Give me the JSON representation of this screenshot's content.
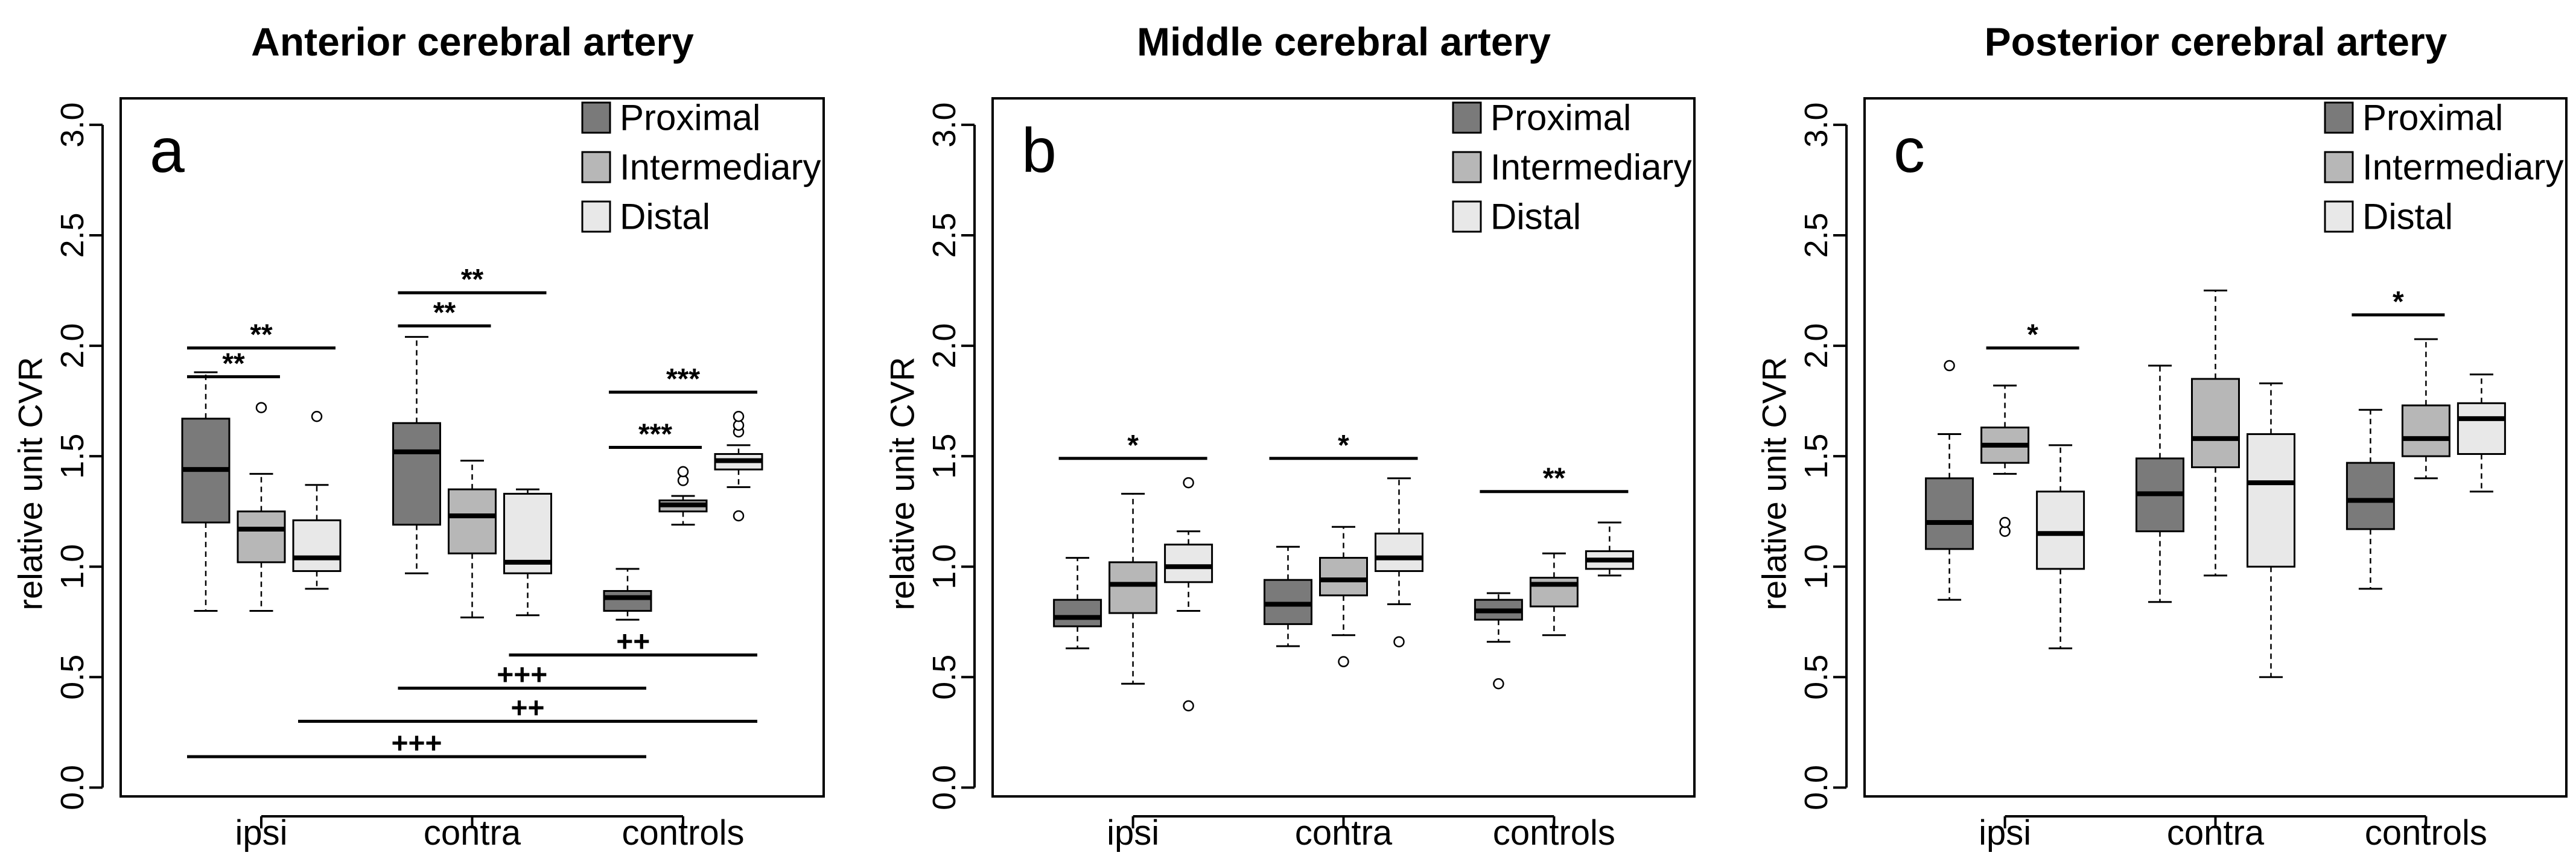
{
  "chart_data": [
    {
      "type": "boxplot",
      "letter": "a",
      "title": "Anterior cerebral artery",
      "xlabel": "",
      "ylabel": "relative unit CVR",
      "ylim": [
        -0.04,
        3.12
      ],
      "yticks": [
        0.0,
        0.5,
        1.0,
        1.5,
        2.0,
        2.5,
        3.0
      ],
      "ytick_labels": [
        "0.0",
        "0.5",
        "1.0",
        "1.5",
        "2.0",
        "2.5",
        "3.0"
      ],
      "categories": [
        "ipsi",
        "contra",
        "controls"
      ],
      "legend": {
        "position": "top-right",
        "entries": [
          {
            "label": "Proximal",
            "color": "#7a7a7a"
          },
          {
            "label": "Intermediary",
            "color": "#b7b7b7"
          },
          {
            "label": "Distal",
            "color": "#e8e8e8"
          }
        ]
      },
      "series": [
        {
          "name": "Proximal",
          "color": "#7a7a7a",
          "boxes": [
            {
              "category": "ipsi",
              "whisker_low": 0.8,
              "q1": 1.2,
              "median": 1.44,
              "q3": 1.67,
              "whisker_high": 1.88,
              "outliers": []
            },
            {
              "category": "contra",
              "whisker_low": 0.97,
              "q1": 1.19,
              "median": 1.52,
              "q3": 1.65,
              "whisker_high": 2.04,
              "outliers": []
            },
            {
              "category": "controls",
              "whisker_low": 0.76,
              "q1": 0.8,
              "median": 0.86,
              "q3": 0.89,
              "whisker_high": 0.99,
              "outliers": []
            }
          ]
        },
        {
          "name": "Intermediary",
          "color": "#b7b7b7",
          "boxes": [
            {
              "category": "ipsi",
              "whisker_low": 0.8,
              "q1": 1.02,
              "median": 1.17,
              "q3": 1.25,
              "whisker_high": 1.42,
              "outliers": [
                1.72
              ]
            },
            {
              "category": "contra",
              "whisker_low": 0.77,
              "q1": 1.06,
              "median": 1.23,
              "q3": 1.35,
              "whisker_high": 1.48,
              "outliers": []
            },
            {
              "category": "controls",
              "whisker_low": 1.19,
              "q1": 1.25,
              "median": 1.28,
              "q3": 1.3,
              "whisker_high": 1.32,
              "outliers": [
                1.39,
                1.43
              ]
            }
          ]
        },
        {
          "name": "Distal",
          "color": "#e8e8e8",
          "boxes": [
            {
              "category": "ipsi",
              "whisker_low": 0.9,
              "q1": 0.98,
              "median": 1.04,
              "q3": 1.21,
              "whisker_high": 1.37,
              "outliers": [
                1.68
              ]
            },
            {
              "category": "contra",
              "whisker_low": 0.78,
              "q1": 0.97,
              "median": 1.02,
              "q3": 1.33,
              "whisker_high": 1.35,
              "outliers": []
            },
            {
              "category": "controls",
              "whisker_low": 1.36,
              "q1": 1.44,
              "median": 1.48,
              "q3": 1.51,
              "whisker_high": 1.55,
              "outliers": [
                1.23,
                1.61,
                1.64,
                1.68
              ]
            }
          ]
        }
      ],
      "annotations": [
        {
          "label": "**",
          "y": 1.99,
          "from": {
            "category": "ipsi",
            "series": "Proximal"
          },
          "to": {
            "category": "ipsi",
            "series": "Distal"
          }
        },
        {
          "label": "**",
          "y": 1.86,
          "from": {
            "category": "ipsi",
            "series": "Proximal"
          },
          "to": {
            "category": "ipsi",
            "series": "Intermediary"
          }
        },
        {
          "label": "**",
          "y": 2.24,
          "from": {
            "category": "contra",
            "series": "Proximal"
          },
          "to": {
            "category": "contra",
            "series": "Distal"
          }
        },
        {
          "label": "**",
          "y": 2.09,
          "from": {
            "category": "contra",
            "series": "Proximal"
          },
          "to": {
            "category": "contra",
            "series": "Intermediary"
          }
        },
        {
          "label": "***",
          "y": 1.79,
          "from": {
            "category": "controls",
            "series": "Proximal"
          },
          "to": {
            "category": "controls",
            "series": "Distal"
          }
        },
        {
          "label": "***",
          "y": 1.54,
          "from": {
            "category": "controls",
            "series": "Proximal"
          },
          "to": {
            "category": "controls",
            "series": "Intermediary"
          }
        },
        {
          "label": "++",
          "y": 0.6,
          "from": {
            "category": "contra",
            "series": "Distal"
          },
          "to": {
            "category": "controls",
            "series": "Distal"
          }
        },
        {
          "label": "+++",
          "y": 0.45,
          "from": {
            "category": "contra",
            "series": "Proximal"
          },
          "to": {
            "category": "controls",
            "series": "Proximal"
          }
        },
        {
          "label": "++",
          "y": 0.3,
          "from": {
            "category": "ipsi",
            "series": "Distal"
          },
          "to": {
            "category": "controls",
            "series": "Distal"
          }
        },
        {
          "label": "+++",
          "y": 0.14,
          "from": {
            "category": "ipsi",
            "series": "Proximal"
          },
          "to": {
            "category": "controls",
            "series": "Proximal"
          }
        }
      ]
    },
    {
      "type": "boxplot",
      "letter": "b",
      "title": "Middle cerebral artery",
      "xlabel": "",
      "ylabel": "relative unit CVR",
      "ylim": [
        -0.04,
        3.12
      ],
      "yticks": [
        0.0,
        0.5,
        1.0,
        1.5,
        2.0,
        2.5,
        3.0
      ],
      "ytick_labels": [
        "0.0",
        "0.5",
        "1.0",
        "1.5",
        "2.0",
        "2.5",
        "3.0"
      ],
      "categories": [
        "ipsi",
        "contra",
        "controls"
      ],
      "legend": {
        "position": "top-right",
        "entries": [
          {
            "label": "Proximal",
            "color": "#7a7a7a"
          },
          {
            "label": "Intermediary",
            "color": "#b7b7b7"
          },
          {
            "label": "Distal",
            "color": "#e8e8e8"
          }
        ]
      },
      "series": [
        {
          "name": "Proximal",
          "color": "#7a7a7a",
          "boxes": [
            {
              "category": "ipsi",
              "whisker_low": 0.63,
              "q1": 0.73,
              "median": 0.77,
              "q3": 0.85,
              "whisker_high": 1.04,
              "outliers": []
            },
            {
              "category": "contra",
              "whisker_low": 0.64,
              "q1": 0.74,
              "median": 0.83,
              "q3": 0.94,
              "whisker_high": 1.09,
              "outliers": []
            },
            {
              "category": "controls",
              "whisker_low": 0.66,
              "q1": 0.76,
              "median": 0.8,
              "q3": 0.85,
              "whisker_high": 0.88,
              "outliers": [
                0.47
              ]
            }
          ]
        },
        {
          "name": "Intermediary",
          "color": "#b7b7b7",
          "boxes": [
            {
              "category": "ipsi",
              "whisker_low": 0.47,
              "q1": 0.79,
              "median": 0.92,
              "q3": 1.02,
              "whisker_high": 1.33,
              "outliers": []
            },
            {
              "category": "contra",
              "whisker_low": 0.69,
              "q1": 0.87,
              "median": 0.94,
              "q3": 1.04,
              "whisker_high": 1.18,
              "outliers": [
                0.57
              ]
            },
            {
              "category": "controls",
              "whisker_low": 0.69,
              "q1": 0.82,
              "median": 0.92,
              "q3": 0.95,
              "whisker_high": 1.06,
              "outliers": []
            }
          ]
        },
        {
          "name": "Distal",
          "color": "#e8e8e8",
          "boxes": [
            {
              "category": "ipsi",
              "whisker_low": 0.8,
              "q1": 0.93,
              "median": 1.0,
              "q3": 1.1,
              "whisker_high": 1.16,
              "outliers": [
                0.37,
                1.38
              ]
            },
            {
              "category": "contra",
              "whisker_low": 0.83,
              "q1": 0.98,
              "median": 1.04,
              "q3": 1.15,
              "whisker_high": 1.4,
              "outliers": [
                0.66
              ]
            },
            {
              "category": "controls",
              "whisker_low": 0.96,
              "q1": 0.99,
              "median": 1.03,
              "q3": 1.07,
              "whisker_high": 1.2,
              "outliers": []
            }
          ]
        }
      ],
      "annotations": [
        {
          "label": "*",
          "y": 1.49,
          "from": {
            "category": "ipsi",
            "series": "Proximal"
          },
          "to": {
            "category": "ipsi",
            "series": "Distal"
          }
        },
        {
          "label": "*",
          "y": 1.49,
          "from": {
            "category": "contra",
            "series": "Proximal"
          },
          "to": {
            "category": "contra",
            "series": "Distal"
          }
        },
        {
          "label": "**",
          "y": 1.34,
          "from": {
            "category": "controls",
            "series": "Proximal"
          },
          "to": {
            "category": "controls",
            "series": "Distal"
          }
        }
      ]
    },
    {
      "type": "boxplot",
      "letter": "c",
      "title": "Posterior cerebral artery",
      "xlabel": "",
      "ylabel": "relative unit CVR",
      "ylim": [
        -0.04,
        3.12
      ],
      "yticks": [
        0.0,
        0.5,
        1.0,
        1.5,
        2.0,
        2.5,
        3.0
      ],
      "ytick_labels": [
        "0.0",
        "0.5",
        "1.0",
        "1.5",
        "2.0",
        "2.5",
        "3.0"
      ],
      "categories": [
        "ipsi",
        "contra",
        "controls"
      ],
      "legend": {
        "position": "top-right",
        "entries": [
          {
            "label": "Proximal",
            "color": "#7a7a7a"
          },
          {
            "label": "Intermediary",
            "color": "#b7b7b7"
          },
          {
            "label": "Distal",
            "color": "#e8e8e8"
          }
        ]
      },
      "series": [
        {
          "name": "Proximal",
          "color": "#7a7a7a",
          "boxes": [
            {
              "category": "ipsi",
              "whisker_low": 0.85,
              "q1": 1.08,
              "median": 1.2,
              "q3": 1.4,
              "whisker_high": 1.6,
              "outliers": [
                1.91
              ]
            },
            {
              "category": "contra",
              "whisker_low": 0.84,
              "q1": 1.16,
              "median": 1.33,
              "q3": 1.49,
              "whisker_high": 1.91,
              "outliers": []
            },
            {
              "category": "controls",
              "whisker_low": 0.9,
              "q1": 1.17,
              "median": 1.3,
              "q3": 1.47,
              "whisker_high": 1.71,
              "outliers": []
            }
          ]
        },
        {
          "name": "Intermediary",
          "color": "#b7b7b7",
          "boxes": [
            {
              "category": "ipsi",
              "whisker_low": 1.42,
              "q1": 1.47,
              "median": 1.55,
              "q3": 1.63,
              "whisker_high": 1.82,
              "outliers": [
                1.16,
                1.2
              ]
            },
            {
              "category": "contra",
              "whisker_low": 0.96,
              "q1": 1.45,
              "median": 1.58,
              "q3": 1.85,
              "whisker_high": 2.25,
              "outliers": []
            },
            {
              "category": "controls",
              "whisker_low": 1.4,
              "q1": 1.5,
              "median": 1.58,
              "q3": 1.73,
              "whisker_high": 2.03,
              "outliers": []
            }
          ]
        },
        {
          "name": "Distal",
          "color": "#e8e8e8",
          "boxes": [
            {
              "category": "ipsi",
              "whisker_low": 0.63,
              "q1": 0.99,
              "median": 1.15,
              "q3": 1.34,
              "whisker_high": 1.55,
              "outliers": []
            },
            {
              "category": "contra",
              "whisker_low": 0.5,
              "q1": 1.0,
              "median": 1.38,
              "q3": 1.6,
              "whisker_high": 1.83,
              "outliers": []
            },
            {
              "category": "controls",
              "whisker_low": 1.34,
              "q1": 1.51,
              "median": 1.67,
              "q3": 1.74,
              "whisker_high": 1.87,
              "outliers": []
            }
          ]
        }
      ],
      "annotations": [
        {
          "label": "*",
          "y": 1.99,
          "from": {
            "category": "ipsi",
            "series": "Intermediary"
          },
          "to": {
            "category": "ipsi",
            "series": "Distal"
          }
        },
        {
          "label": "*",
          "y": 2.14,
          "from": {
            "category": "controls",
            "series": "Proximal"
          },
          "to": {
            "category": "controls",
            "series": "Intermediary"
          }
        }
      ]
    }
  ]
}
